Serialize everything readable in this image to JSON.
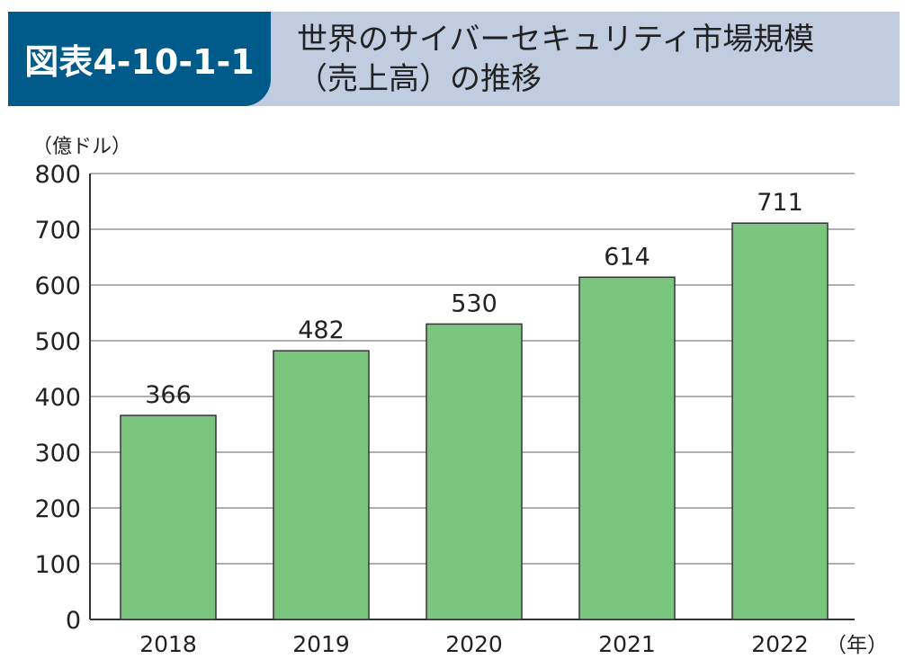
{
  "header": {
    "figure_label": "図表4-10-1-1",
    "title_line1": "世界のサイバーセキュリティ市場規模",
    "title_line2": "（売上高）の推移"
  },
  "chart_data": {
    "type": "bar",
    "title": "世界のサイバーセキュリティ市場規模（売上高）の推移",
    "ylabel": "（億ドル）",
    "xlabel": "（年）",
    "categories": [
      "2018",
      "2019",
      "2020",
      "2021",
      "2022"
    ],
    "values": [
      366,
      482,
      530,
      614,
      711
    ],
    "ylim": [
      0,
      800
    ],
    "yticks": [
      0,
      100,
      200,
      300,
      400,
      500,
      600,
      700,
      800
    ],
    "grid": true,
    "colors": {
      "bar": "#7bc67f",
      "bar_edge": "#333333",
      "grid": "#b0b0b0"
    }
  }
}
